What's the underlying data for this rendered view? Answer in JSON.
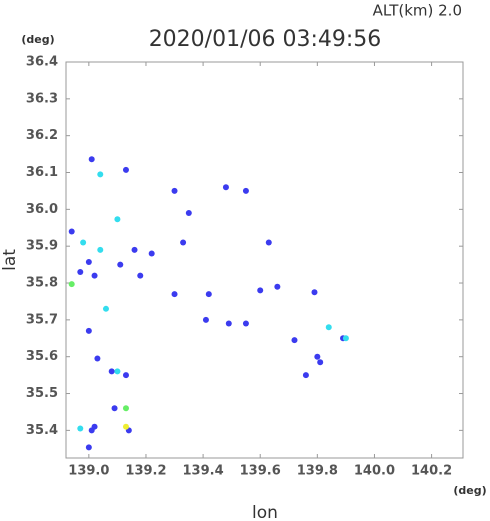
{
  "chart_data": {
    "type": "scatter",
    "title": "2020/01/06 03:49:56",
    "subtitle": "ALT(km)  2.0",
    "x_label": "lon",
    "y_label": "lat",
    "x_unit": "(deg)",
    "y_unit": "(deg)",
    "xlim": [
      138.92,
      140.31
    ],
    "ylim": [
      35.325,
      36.4
    ],
    "xticks": [
      {
        "value": 139.0,
        "label": "139.0"
      },
      139.2,
      139.4,
      139.6,
      139.8,
      {
        "value": 140.0,
        "label": "140.0"
      },
      140.2
    ],
    "yticks": [
      36.4,
      36.3,
      36.2,
      36.1,
      {
        "value": 36.0,
        "label": "36.0"
      },
      35.9,
      35.8,
      35.7,
      35.6,
      35.5,
      35.4
    ],
    "series": [
      {
        "color": "#3b3bef",
        "x": [
          139.01,
          139.13,
          138.94,
          139.16,
          139.0,
          139.02,
          138.97,
          139.11,
          139.18,
          139.0,
          139.03,
          139.08,
          139.13,
          139.09,
          139.01,
          139.02,
          139.14,
          139.0,
          139.33,
          139.35,
          139.3,
          139.48,
          139.55,
          139.42,
          139.6,
          139.66,
          139.79,
          139.49,
          139.55,
          139.41,
          139.72,
          139.8,
          139.81,
          139.76,
          139.22,
          139.3,
          139.63,
          139.89
        ],
        "y": [
          36.136,
          36.107,
          35.94,
          35.89,
          35.857,
          35.82,
          35.83,
          35.85,
          35.82,
          35.67,
          35.595,
          35.56,
          35.55,
          35.46,
          35.4,
          35.41,
          35.4,
          35.354,
          35.91,
          35.99,
          36.05,
          36.06,
          36.05,
          35.77,
          35.78,
          35.79,
          35.775,
          35.69,
          35.69,
          35.7,
          35.645,
          35.6,
          35.585,
          35.55,
          35.88,
          35.77,
          35.91,
          35.65
        ]
      },
      {
        "color": "#33ddee",
        "x": [
          139.04,
          139.1,
          138.98,
          139.04,
          139.06,
          139.1,
          138.97,
          139.84,
          139.9
        ],
        "y": [
          36.095,
          35.973,
          35.91,
          35.89,
          35.73,
          35.56,
          35.405,
          35.68,
          35.65
        ]
      },
      {
        "color": "#66ee66",
        "x": [
          138.94,
          139.13
        ],
        "y": [
          35.797,
          35.46
        ]
      },
      {
        "color": "#eeee33",
        "x": [
          139.13
        ],
        "y": [
          35.41
        ]
      }
    ]
  }
}
